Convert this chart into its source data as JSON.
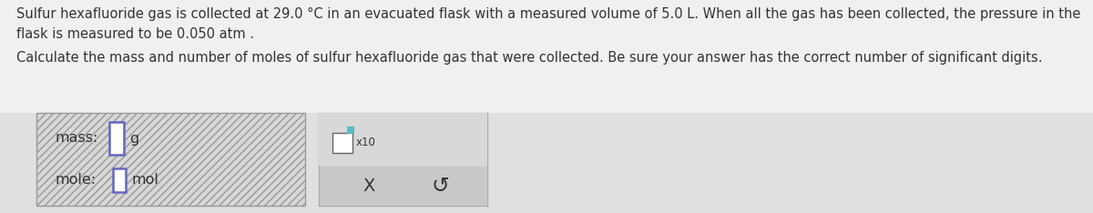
{
  "fig_bg": "#e0e0e0",
  "text_area_bg": "#e8e8e8",
  "title_line1": "Sulfur hexafluoride gas is collected at 29.0 °C in an evacuated flask with a measured volume of 5.0 L. When all the gas has been collected, the pressure in the",
  "title_line2": "flask is measured to be 0.050 atm .",
  "title_line3": "Calculate the mass and number of moles of sulfur hexafluoride gas that were collected. Be sure your answer has the correct number of significant digits.",
  "label_mass": "mass:",
  "label_mole": "mole:",
  "unit_g": "g",
  "unit_mol": "mol",
  "input_box_color": "#ffffff",
  "input_border_color": "#6666bb",
  "left_panel_bg": "#d8d8d8",
  "left_panel_edge": "#999999",
  "right_panel_bg": "#d4d4d4",
  "right_panel_bottom_bg": "#c4c4c4",
  "text_color": "#333333",
  "x10_text": "x10",
  "cross_symbol": "X",
  "undo_symbol": "↺",
  "teal_color": "#5abcbc",
  "font_size_body": 10.5,
  "font_size_labels": 11.5,
  "font_size_units": 11.5
}
